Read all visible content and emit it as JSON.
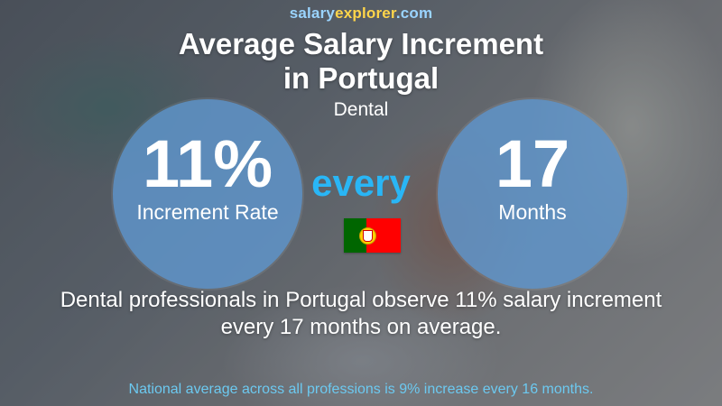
{
  "site": {
    "part1": "salary",
    "part2": "explorer",
    "part3": ".com"
  },
  "title": {
    "line1": "Average Salary Increment",
    "line2": "in Portugal"
  },
  "subtitle": "Dental",
  "increment": {
    "value": "11%",
    "label": "Increment Rate"
  },
  "connector": "every",
  "period": {
    "value": "17",
    "label": "Months"
  },
  "flag": {
    "country": "Portugal",
    "icon": "portugal-flag-icon"
  },
  "description": {
    "line1": "Dental professionals in Portugal observe 11% salary increment",
    "line2": "every 17 months on average."
  },
  "national_note": "National average across all professions is 9% increase every 16 months.",
  "colors": {
    "circle": "#5f96cd",
    "every": "#29b6f6",
    "logo_blue": "#9ad4ff",
    "logo_yellow": "#ffd54a",
    "note": "#6cc9f0"
  }
}
